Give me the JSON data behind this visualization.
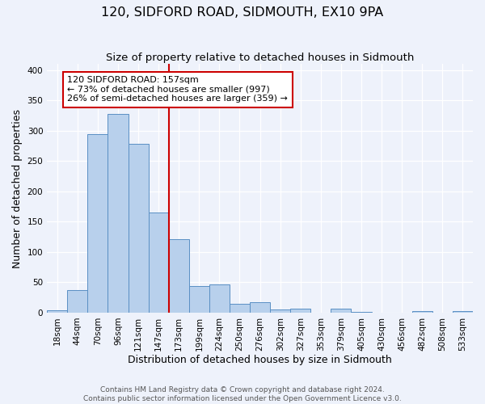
{
  "title": "120, SIDFORD ROAD, SIDMOUTH, EX10 9PA",
  "subtitle": "Size of property relative to detached houses in Sidmouth",
  "xlabel": "Distribution of detached houses by size in Sidmouth",
  "ylabel": "Number of detached properties",
  "bar_labels": [
    "18sqm",
    "44sqm",
    "70sqm",
    "96sqm",
    "121sqm",
    "147sqm",
    "173sqm",
    "199sqm",
    "224sqm",
    "250sqm",
    "276sqm",
    "302sqm",
    "327sqm",
    "353sqm",
    "379sqm",
    "405sqm",
    "430sqm",
    "456sqm",
    "482sqm",
    "508sqm",
    "533sqm"
  ],
  "bar_heights": [
    4,
    37,
    294,
    328,
    278,
    165,
    121,
    44,
    46,
    15,
    17,
    5,
    6,
    0,
    6,
    1,
    0,
    0,
    2,
    0,
    2
  ],
  "bar_color": "#b8d0ec",
  "bar_edge_color": "#5a8fc4",
  "vline_x": 5.5,
  "vline_color": "#cc0000",
  "annotation_box_text": "120 SIDFORD ROAD: 157sqm\n← 73% of detached houses are smaller (997)\n26% of semi-detached houses are larger (359) →",
  "annotation_box_color": "#cc0000",
  "ylim": [
    0,
    410
  ],
  "yticks": [
    0,
    50,
    100,
    150,
    200,
    250,
    300,
    350,
    400
  ],
  "footer_line1": "Contains HM Land Registry data © Crown copyright and database right 2024.",
  "footer_line2": "Contains public sector information licensed under the Open Government Licence v3.0.",
  "bg_color": "#eef2fb",
  "plot_bg_color": "#eef2fb",
  "title_fontsize": 11.5,
  "subtitle_fontsize": 9.5,
  "axis_label_fontsize": 9,
  "tick_fontsize": 7.5,
  "footer_fontsize": 6.5
}
